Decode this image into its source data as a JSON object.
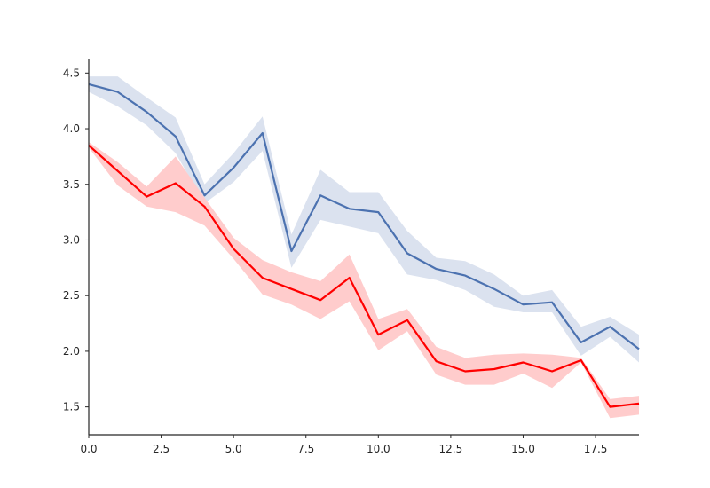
{
  "chart_data": {
    "type": "line",
    "title": "",
    "xlabel": "",
    "ylabel": "",
    "xlim": [
      0,
      19
    ],
    "ylim": [
      1.25,
      4.63
    ],
    "grid": false,
    "x_ticks": [
      "0.0",
      "2.5",
      "5.0",
      "7.5",
      "10.0",
      "12.5",
      "15.0",
      "17.5"
    ],
    "x_tick_values": [
      0,
      2.5,
      5,
      7.5,
      10,
      12.5,
      15,
      17.5
    ],
    "y_ticks": [
      "1.5",
      "2.0",
      "2.5",
      "3.0",
      "3.5",
      "4.0",
      "4.5"
    ],
    "y_tick_values": [
      1.5,
      2.0,
      2.5,
      3.0,
      3.5,
      4.0,
      4.5
    ],
    "x": [
      0,
      1,
      2,
      3,
      4,
      5,
      6,
      7,
      8,
      9,
      10,
      11,
      12,
      13,
      14,
      15,
      16,
      17,
      18,
      19
    ],
    "series": [
      {
        "color": "#4c72b0",
        "band_color": "#dbe2ef",
        "values": [
          4.4,
          4.33,
          4.15,
          3.93,
          3.4,
          3.65,
          3.96,
          2.9,
          3.4,
          3.28,
          3.25,
          2.88,
          2.74,
          2.68,
          2.56,
          2.42,
          2.44,
          2.08,
          2.22,
          2.02
        ],
        "lower": [
          4.33,
          4.2,
          4.03,
          3.78,
          3.33,
          3.52,
          3.8,
          2.75,
          3.18,
          3.12,
          3.06,
          2.69,
          2.64,
          2.55,
          2.4,
          2.35,
          2.35,
          1.96,
          2.13,
          1.9
        ],
        "upper": [
          4.47,
          4.47,
          4.28,
          4.1,
          3.5,
          3.78,
          4.11,
          3.05,
          3.63,
          3.43,
          3.43,
          3.08,
          2.84,
          2.81,
          2.69,
          2.5,
          2.55,
          2.22,
          2.31,
          2.15
        ]
      },
      {
        "color": "#ff0000",
        "band_color": "#ffcccc",
        "values": [
          3.85,
          3.62,
          3.39,
          3.51,
          3.3,
          2.92,
          2.66,
          2.56,
          2.46,
          2.66,
          2.15,
          2.28,
          1.91,
          1.82,
          1.84,
          1.9,
          1.82,
          1.92,
          1.5,
          1.53
        ],
        "lower": [
          3.83,
          3.49,
          3.3,
          3.25,
          3.13,
          2.83,
          2.51,
          2.42,
          2.29,
          2.45,
          2.01,
          2.18,
          1.79,
          1.7,
          1.7,
          1.8,
          1.67,
          1.9,
          1.4,
          1.43
        ],
        "upper": [
          3.88,
          3.7,
          3.48,
          3.75,
          3.38,
          3.02,
          2.82,
          2.71,
          2.63,
          2.87,
          2.29,
          2.38,
          2.04,
          1.94,
          1.97,
          1.98,
          1.97,
          1.94,
          1.57,
          1.6
        ]
      }
    ]
  }
}
